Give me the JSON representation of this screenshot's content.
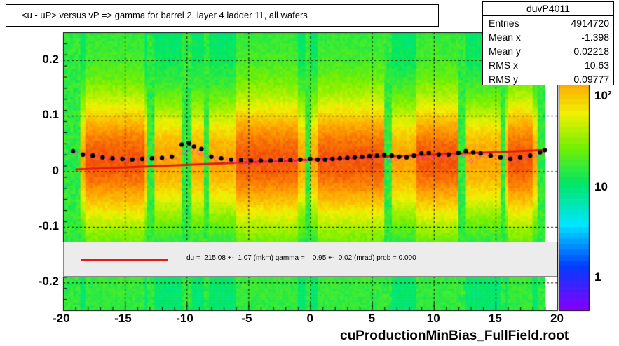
{
  "title": "<u - uP>       versus   vP =>  gamma for barrel 2, layer 4 ladder 11, all wafers",
  "stats": {
    "name": "duvP4011",
    "rows": [
      {
        "label": "Entries",
        "value": "4914720"
      },
      {
        "label": "Mean x",
        "value": "-1.398"
      },
      {
        "label": "Mean y",
        "value": "0.02218"
      },
      {
        "label": "RMS x",
        "value": "10.63"
      },
      {
        "label": "RMS y",
        "value": "0.09777"
      }
    ]
  },
  "fit_legend": "du =  215.08 +-  1.07 (mkm) gamma =    0.95 +-  0.02 (mrad) prob = 0.000",
  "footer": "cuProductionMinBias_FullField.root",
  "chart_data": {
    "type": "heatmap",
    "xlim": [
      -20,
      20
    ],
    "ylim": [
      -0.25,
      0.25
    ],
    "x_ticks": [
      "-20",
      "-15",
      "-10",
      "-5",
      "0",
      "5",
      "10",
      "15",
      "20"
    ],
    "y_ticks": [
      "0.2",
      "0.1",
      "0",
      "-0.1",
      "-0.2"
    ],
    "z_ticks": [
      "10²",
      "10",
      "1"
    ],
    "z_scale": "log",
    "grid": true,
    "fit_line": {
      "x": [
        -19,
        19
      ],
      "y": [
        0.003,
        0.038
      ],
      "color": "#e21b14"
    },
    "mean_points": {
      "x": [
        -19.2,
        -18.4,
        -17.6,
        -16.8,
        -16.0,
        -15.2,
        -14.4,
        -13.6,
        -12.8,
        -12.0,
        -11.2,
        -10.4,
        -9.8,
        -9.4,
        -8.8,
        -8.0,
        -7.2,
        -6.4,
        -5.6,
        -4.8,
        -4.0,
        -3.2,
        -2.4,
        -1.6,
        -0.8,
        0.0,
        0.6,
        1.2,
        1.8,
        2.4,
        3.0,
        3.6,
        4.2,
        4.8,
        5.4,
        6.0,
        6.6,
        7.2,
        7.8,
        8.4,
        9.0,
        9.6,
        10.4,
        11.2,
        12.0,
        12.6,
        13.2,
        13.8,
        14.6,
        15.4,
        16.2,
        17.0,
        17.8,
        18.6,
        19.0
      ],
      "y": [
        0.036,
        0.03,
        0.028,
        0.025,
        0.023,
        0.022,
        0.021,
        0.022,
        0.023,
        0.024,
        0.026,
        0.048,
        0.05,
        0.044,
        0.04,
        0.026,
        0.023,
        0.021,
        0.02,
        0.019,
        0.019,
        0.019,
        0.02,
        0.02,
        0.021,
        0.022,
        0.021,
        0.021,
        0.022,
        0.023,
        0.024,
        0.025,
        0.026,
        0.027,
        0.028,
        0.029,
        0.028,
        0.026,
        0.025,
        0.028,
        0.032,
        0.033,
        0.03,
        0.03,
        0.033,
        0.036,
        0.034,
        0.032,
        0.028,
        0.025,
        0.022,
        0.025,
        0.028,
        0.034,
        0.038
      ],
      "color": "#000000"
    },
    "rms_points": {
      "x": [
        -19.0,
        -18.2,
        -17.4,
        -16.6,
        -15.8,
        -15.0,
        -14.2,
        -13.4,
        -12.6,
        -11.8,
        -11.0,
        -10.2,
        -9.6,
        -9.0,
        -8.4,
        -7.6,
        -6.8,
        -6.0,
        -5.2,
        -4.4,
        -3.6,
        -2.8,
        -2.0,
        -1.2,
        -0.4,
        0.4,
        1.0,
        1.6,
        2.2,
        2.8,
        3.4,
        4.0,
        4.6,
        5.2,
        5.8,
        6.4,
        7.0,
        7.6,
        8.2,
        8.8,
        9.4,
        10.0,
        10.8,
        11.6,
        12.4,
        13.0,
        13.6,
        14.2,
        15.0,
        15.8,
        16.6,
        17.4,
        18.2,
        18.8
      ],
      "y": [
        0.033,
        0.03,
        0.027,
        0.025,
        0.022,
        0.021,
        0.02,
        0.021,
        0.022,
        0.022,
        0.024,
        0.034,
        0.038,
        0.034,
        0.028,
        0.022,
        0.019,
        0.017,
        0.016,
        0.016,
        0.017,
        0.017,
        0.018,
        0.018,
        0.019,
        0.019,
        0.019,
        0.02,
        0.021,
        0.022,
        0.022,
        0.023,
        0.023,
        0.024,
        0.022,
        0.021,
        0.022,
        0.023,
        0.024,
        0.024,
        0.024,
        0.025,
        0.026,
        0.027,
        0.028,
        0.018,
        0.026,
        0.027,
        0.026,
        0.024,
        0.022,
        0.024,
        0.028,
        0.032
      ],
      "color": "#ff3fd2"
    },
    "low_stat_bands_x": [
      [
        -19.4,
        -18.6
      ],
      [
        -13.3,
        -12.7
      ],
      [
        -10.4,
        -9.6
      ],
      [
        -8.7,
        -8.2
      ],
      [
        -0.5,
        0.0
      ],
      [
        5.9,
        6.5
      ],
      [
        12.0,
        12.6
      ],
      [
        15.3,
        15.7
      ],
      [
        18.3,
        19.0
      ]
    ],
    "fit_box_y": [
      -0.125,
      -0.185
    ]
  }
}
